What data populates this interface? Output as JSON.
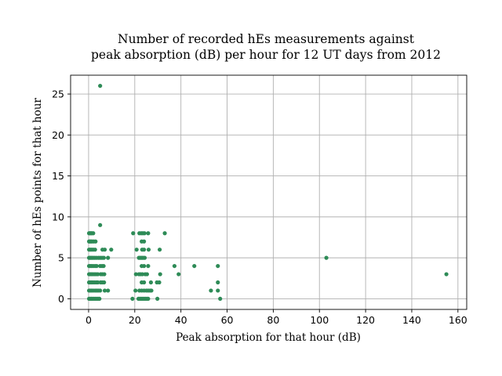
{
  "chart_data": {
    "type": "scatter",
    "title_line1": "Number of recorded hEs measurements against",
    "title_line2": "peak absorption (dB) per hour for 12 UT days from 2012",
    "xlabel": "Peak absorption for that hour (dB)",
    "ylabel": "Number of hEs points for that hour",
    "xlim": [
      -7.8,
      163.8
    ],
    "ylim": [
      -1.3,
      27.3
    ],
    "xticks": [
      0,
      20,
      40,
      60,
      80,
      100,
      120,
      140,
      160
    ],
    "yticks": [
      0,
      5,
      10,
      15,
      20,
      25
    ],
    "xtick_labels": [
      "0",
      "20",
      "40",
      "60",
      "80",
      "100",
      "120",
      "140",
      "160"
    ],
    "ytick_labels": [
      "0",
      "5",
      "10",
      "15",
      "20",
      "25"
    ],
    "grid": true,
    "marker_color": "#2e8b57",
    "points": [
      [
        5.0,
        26
      ],
      [
        5.0,
        9
      ],
      [
        103.0,
        5
      ],
      [
        155.0,
        3
      ],
      [
        0.2,
        8
      ],
      [
        0.6,
        8
      ],
      [
        1.0,
        8
      ],
      [
        1.4,
        8
      ],
      [
        2.0,
        8
      ],
      [
        0.2,
        7
      ],
      [
        0.6,
        7
      ],
      [
        1.0,
        7
      ],
      [
        1.5,
        7
      ],
      [
        2.2,
        7
      ],
      [
        3.0,
        7
      ],
      [
        0.2,
        6
      ],
      [
        0.7,
        6
      ],
      [
        1.3,
        6
      ],
      [
        2.0,
        6
      ],
      [
        2.8,
        6
      ],
      [
        6.0,
        6
      ],
      [
        7.0,
        6
      ],
      [
        9.8,
        6
      ],
      [
        0.2,
        5
      ],
      [
        0.7,
        5
      ],
      [
        1.2,
        5
      ],
      [
        1.8,
        5
      ],
      [
        2.5,
        5
      ],
      [
        3.3,
        5
      ],
      [
        4.2,
        5
      ],
      [
        5.0,
        5
      ],
      [
        5.8,
        5
      ],
      [
        6.6,
        5
      ],
      [
        8.4,
        5
      ],
      [
        0.2,
        4
      ],
      [
        0.7,
        4
      ],
      [
        1.3,
        4
      ],
      [
        2.0,
        4
      ],
      [
        2.8,
        4
      ],
      [
        3.5,
        4
      ],
      [
        5.0,
        4
      ],
      [
        5.8,
        4
      ],
      [
        6.5,
        4
      ],
      [
        0.2,
        3
      ],
      [
        0.7,
        3
      ],
      [
        1.2,
        3
      ],
      [
        1.8,
        3
      ],
      [
        2.5,
        3
      ],
      [
        3.2,
        3
      ],
      [
        4.0,
        3
      ],
      [
        5.3,
        3
      ],
      [
        6.0,
        3
      ],
      [
        6.8,
        3
      ],
      [
        0.2,
        2
      ],
      [
        0.7,
        2
      ],
      [
        1.2,
        2
      ],
      [
        1.8,
        2
      ],
      [
        2.5,
        2
      ],
      [
        3.3,
        2
      ],
      [
        4.0,
        2
      ],
      [
        5.2,
        2
      ],
      [
        5.9,
        2
      ],
      [
        6.7,
        2
      ],
      [
        0.2,
        1
      ],
      [
        0.7,
        1
      ],
      [
        1.3,
        1
      ],
      [
        2.0,
        1
      ],
      [
        2.8,
        1
      ],
      [
        3.5,
        1
      ],
      [
        4.2,
        1
      ],
      [
        5.0,
        1
      ],
      [
        7.0,
        1
      ],
      [
        8.4,
        1
      ],
      [
        0.2,
        0
      ],
      [
        0.7,
        0
      ],
      [
        1.2,
        0
      ],
      [
        1.7,
        0
      ],
      [
        2.3,
        0
      ],
      [
        2.9,
        0
      ],
      [
        3.5,
        0
      ],
      [
        4.1,
        0
      ],
      [
        4.7,
        0
      ],
      [
        19.3,
        8
      ],
      [
        22.0,
        8
      ],
      [
        22.8,
        8
      ],
      [
        23.5,
        8
      ],
      [
        24.2,
        8
      ],
      [
        25.8,
        8
      ],
      [
        33.0,
        8
      ],
      [
        23.0,
        7
      ],
      [
        24.0,
        7
      ],
      [
        20.8,
        6
      ],
      [
        23.2,
        6
      ],
      [
        24.0,
        6
      ],
      [
        26.0,
        6
      ],
      [
        30.8,
        6
      ],
      [
        21.8,
        5
      ],
      [
        22.4,
        5
      ],
      [
        23.0,
        5
      ],
      [
        23.6,
        5
      ],
      [
        24.3,
        5
      ],
      [
        23.0,
        4
      ],
      [
        24.0,
        4
      ],
      [
        25.8,
        4
      ],
      [
        37.2,
        4
      ],
      [
        45.8,
        4
      ],
      [
        56.0,
        4
      ],
      [
        20.5,
        3
      ],
      [
        21.8,
        3
      ],
      [
        22.5,
        3
      ],
      [
        23.3,
        3
      ],
      [
        24.5,
        3
      ],
      [
        25.3,
        3
      ],
      [
        31.0,
        3
      ],
      [
        39.0,
        3
      ],
      [
        23.0,
        2
      ],
      [
        24.0,
        2
      ],
      [
        27.0,
        2
      ],
      [
        29.6,
        2
      ],
      [
        30.6,
        2
      ],
      [
        56.0,
        2
      ],
      [
        20.3,
        1
      ],
      [
        22.0,
        1
      ],
      [
        23.0,
        1
      ],
      [
        24.0,
        1
      ],
      [
        25.0,
        1
      ],
      [
        25.8,
        1
      ],
      [
        26.6,
        1
      ],
      [
        27.2,
        1
      ],
      [
        53.0,
        1
      ],
      [
        56.0,
        1
      ],
      [
        19.0,
        0
      ],
      [
        21.6,
        0
      ],
      [
        22.2,
        0
      ],
      [
        22.8,
        0
      ],
      [
        23.4,
        0
      ],
      [
        24.0,
        0
      ],
      [
        24.6,
        0
      ],
      [
        25.2,
        0
      ],
      [
        25.8,
        0
      ],
      [
        29.8,
        0
      ],
      [
        57.0,
        0
      ]
    ]
  }
}
